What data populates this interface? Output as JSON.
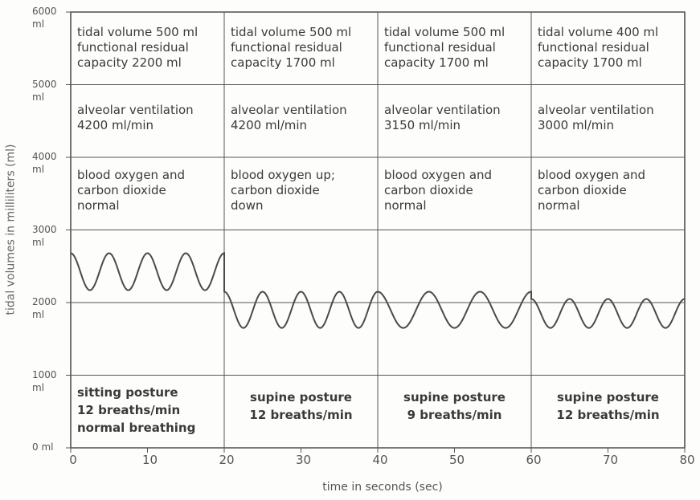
{
  "chart_data": {
    "type": "line",
    "xlabel": "time in seconds (sec)",
    "ylabel": "tidal volumes in milliliters (ml)",
    "xlim": [
      0,
      80
    ],
    "xticks": [
      0,
      10,
      20,
      30,
      40,
      50,
      60,
      70,
      80
    ],
    "ylim": [
      0,
      6000
    ],
    "yticks": [
      {
        "value": 0,
        "label": "0 ml"
      },
      {
        "value": 1000,
        "label": "1000 ml"
      },
      {
        "value": 2000,
        "label": "2000 ml"
      },
      {
        "value": 3000,
        "label": "3000 ml"
      },
      {
        "value": 4000,
        "label": "4000 ml"
      },
      {
        "value": 5000,
        "label": "5000 ml"
      },
      {
        "value": 6000,
        "label": "6000 ml"
      }
    ],
    "grid": true,
    "dividers": [
      20,
      40,
      60
    ],
    "series": [
      {
        "color": "#4a4a4a",
        "x": [
          0,
          2.5,
          5,
          7.5,
          10,
          12.5,
          15,
          17.5,
          20,
          20,
          22.5,
          25,
          27.5,
          30,
          32.5,
          35,
          37.5,
          40,
          43.33,
          46.67,
          50,
          53.33,
          56.67,
          60,
          60,
          62.5,
          65,
          67.5,
          70,
          72.5,
          75,
          77.5,
          80
        ],
        "values": [
          2680,
          2170,
          2680,
          2170,
          2680,
          2170,
          2680,
          2170,
          2680,
          2150,
          1650,
          2150,
          1650,
          2150,
          1650,
          2150,
          1650,
          2150,
          1650,
          2150,
          1650,
          2150,
          1650,
          2150,
          2050,
          1650,
          2050,
          1650,
          2050,
          1650,
          2050,
          1650,
          2050
        ]
      }
    ],
    "panels": [
      {
        "info": [
          [
            "tidal volume 500 ml",
            "functional residual",
            "capacity 2200 ml"
          ],
          [
            "alveolar ventilation",
            "4200 ml/min"
          ],
          [
            "blood oxygen and",
            "carbon dioxide",
            "normal"
          ]
        ],
        "posture": [
          "sitting posture",
          "12 breaths/min",
          "normal breathing"
        ]
      },
      {
        "info": [
          [
            "tidal volume 500 ml",
            "functional residual",
            "capacity 1700 ml"
          ],
          [
            "alveolar ventilation",
            "4200 ml/min"
          ],
          [
            "blood oxygen up;",
            "carbon dioxide",
            "down"
          ]
        ],
        "posture": [
          "supine posture",
          "12 breaths/min"
        ]
      },
      {
        "info": [
          [
            "tidal volume 500 ml",
            "functional residual",
            "capacity 1700 ml"
          ],
          [
            "alveolar ventilation",
            "3150 ml/min"
          ],
          [
            "blood oxygen and",
            "carbon dioxide",
            "normal"
          ]
        ],
        "posture": [
          "supine posture",
          "9 breaths/min"
        ]
      },
      {
        "info": [
          [
            "tidal volume 400 ml",
            "functional residual",
            "capacity 1700 ml"
          ],
          [
            "alveolar ventilation",
            "3000 ml/min"
          ],
          [
            "blood oxygen and",
            "carbon dioxide",
            "normal"
          ]
        ],
        "posture": [
          "supine posture",
          "12 breaths/min"
        ]
      }
    ]
  }
}
